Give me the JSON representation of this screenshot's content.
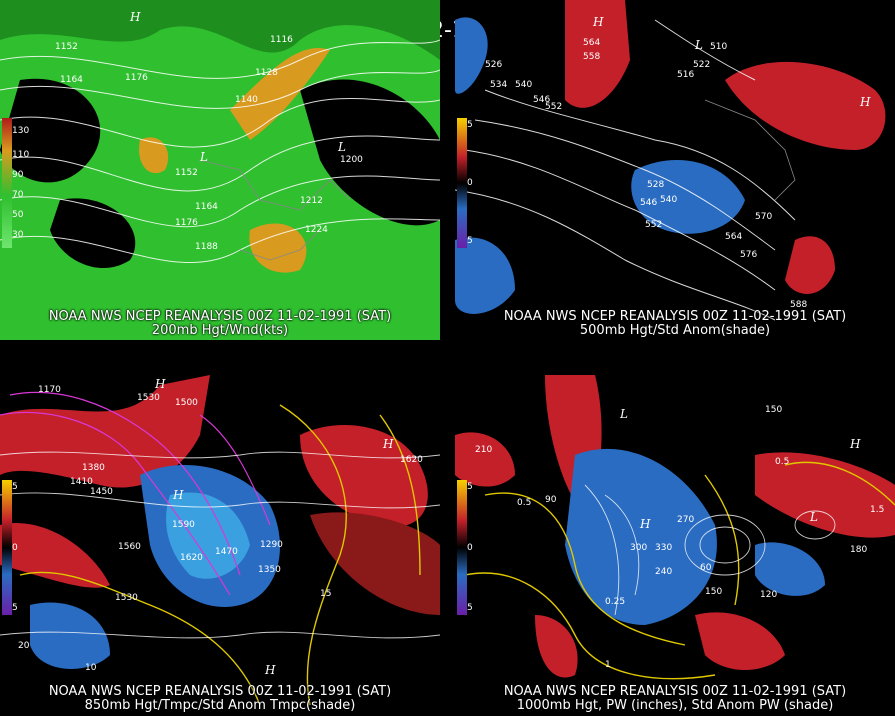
{
  "main_title": "00Z 11-02-1991 (SAT)",
  "panels": [
    {
      "id": "p1",
      "line1": "NOAA NWS NCEP REANALYSIS 00Z 11-02-1991 (SAT)",
      "line2": "200mb Hgt/Wnd(kts)",
      "colorbar_ticks": [
        "130",
        "110",
        "90",
        "70",
        "50",
        "30",
        "30"
      ],
      "contour_labels": [
        "1152",
        "1164",
        "1176",
        "1116",
        "1128",
        "1140",
        "1152",
        "1164",
        "1176",
        "1188",
        "1200",
        "1212",
        "1224",
        "1200"
      ],
      "pressure_labels": [
        "H",
        "L",
        "H",
        "L"
      ]
    },
    {
      "id": "p2",
      "line1": "NOAA NWS NCEP REANALYSIS 00Z 11-02-1991 (SAT)",
      "line2": "500mb Hgt/Std Anom(shade)",
      "colorbar_ticks": [
        "5",
        "4",
        "3",
        "2",
        "1",
        "0",
        "1",
        "2",
        "3",
        "4",
        "5"
      ],
      "contour_labels": [
        "526",
        "534",
        "540",
        "546",
        "552",
        "558",
        "564",
        "510",
        "516",
        "522",
        "528",
        "540",
        "546",
        "552",
        "564",
        "570",
        "576",
        "582",
        "588"
      ],
      "pressure_labels": [
        "H",
        "L",
        "L",
        "L",
        "H",
        "L",
        "L",
        "L"
      ]
    },
    {
      "id": "p3",
      "line1": "NOAA NWS NCEP REANALYSIS 00Z 11-02-1991 (SAT)",
      "line2": "850mb Hgt/Tmpc/Std Anom Tmpc(shade)",
      "colorbar_ticks": [
        "5",
        "4",
        "3",
        "2",
        "1",
        "0",
        "1",
        "2",
        "3",
        "4",
        "5"
      ],
      "contour_labels": [
        "1170",
        "1380",
        "1410",
        "1450",
        "1500",
        "1530",
        "1620",
        "1560",
        "1590",
        "1470",
        "1350",
        "1290",
        "1530",
        "1620",
        "20",
        "10",
        "15"
      ],
      "pressure_labels": [
        "H",
        "L",
        "H",
        "L",
        "H",
        "H",
        "L",
        "L"
      ]
    },
    {
      "id": "p4",
      "line1": "NOAA NWS NCEP REANALYSIS 00Z 11-02-1991 (SAT)",
      "line2": "1000mb Hgt, PW (inches), Std Anom PW (shade)",
      "colorbar_ticks": [
        "5",
        "4",
        "3",
        "2",
        "1",
        "0",
        "1",
        "2",
        "3",
        "4",
        "5"
      ],
      "contour_labels": [
        "210",
        "150",
        "0.5",
        "0.25",
        "300",
        "330",
        "270",
        "240",
        "150",
        "120",
        "180",
        "60",
        "90",
        "1",
        "1.5",
        "0.5"
      ],
      "pressure_labels": [
        "L",
        "L",
        "H",
        "L",
        "H",
        "L",
        "L"
      ]
    }
  ]
}
